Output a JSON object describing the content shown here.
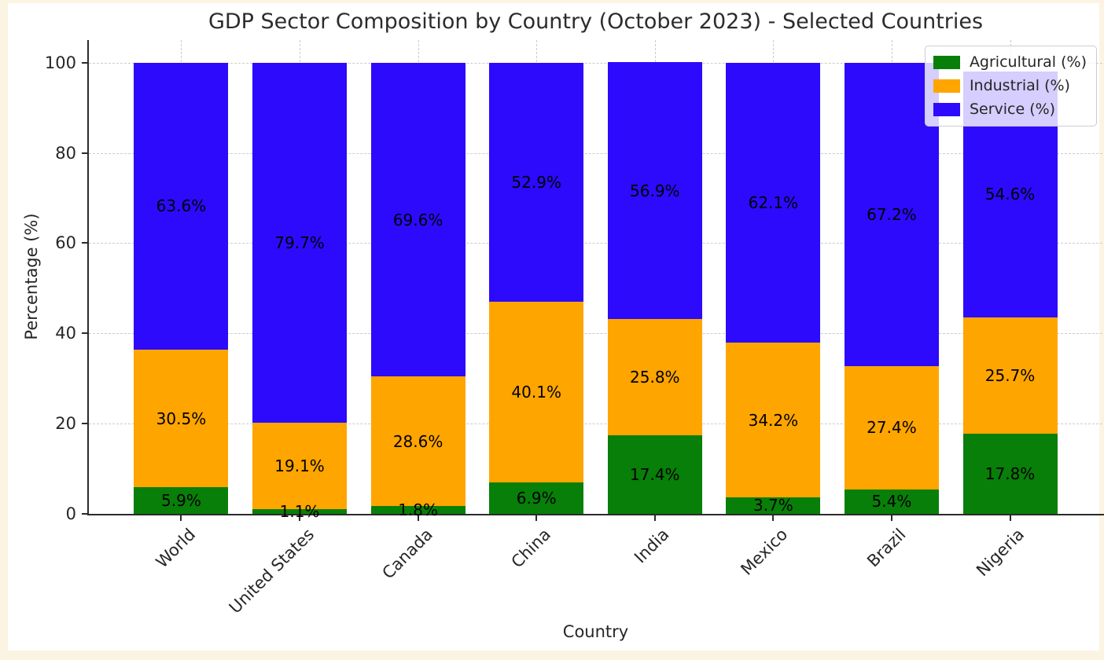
{
  "chart_data": {
    "type": "bar",
    "stacked": true,
    "title": "GDP Sector Composition by Country (October 2023) - Selected Countries",
    "xlabel": "Country",
    "ylabel": "Percentage (%)",
    "categories": [
      "World",
      "United States",
      "Canada",
      "China",
      "India",
      "Mexico",
      "Brazil",
      "Nigeria"
    ],
    "series": [
      {
        "name": "Agricultural (%)",
        "color": "#087f08",
        "values": [
          5.9,
          1.1,
          1.8,
          6.9,
          17.4,
          3.7,
          5.4,
          17.8
        ]
      },
      {
        "name": "Industrial (%)",
        "color": "#ffa500",
        "values": [
          30.5,
          19.1,
          28.6,
          40.1,
          25.8,
          34.2,
          27.4,
          25.7
        ]
      },
      {
        "name": "Service (%)",
        "color": "#2d0afb",
        "values": [
          63.6,
          79.7,
          69.6,
          52.9,
          56.9,
          62.1,
          67.2,
          54.6
        ]
      }
    ],
    "bar_labels": [
      "5.9%",
      "1.1%",
      "1.8%",
      "6.9%",
      "17.4%",
      "3.7%",
      "5.4%",
      "17.8%",
      "30.5%",
      "19.1%",
      "28.6%",
      "40.1%",
      "25.8%",
      "34.2%",
      "27.4%",
      "25.7%",
      "63.6%",
      "79.7%",
      "69.6%",
      "52.9%",
      "56.9%",
      "62.1%",
      "67.2%",
      "54.6%"
    ],
    "ylim": [
      0,
      105
    ],
    "xlim": [
      -0.78,
      7.78
    ],
    "yticks": [
      0,
      20,
      40,
      60,
      80,
      100
    ],
    "grid": true,
    "grid_style": "dashed",
    "legend_position": "upper right",
    "legend_entries": [
      "Agricultural (%)",
      "Industrial (%)",
      "Service (%)"
    ]
  },
  "colors": {
    "page_background": "#fcf4e3",
    "figure_background": "#ffffff",
    "grid": "#cbcbcb",
    "spine": "#2b2b2b",
    "text": "#262626",
    "agricultural": "#087f08",
    "industrial": "#ffa500",
    "service": "#2d0afb"
  }
}
